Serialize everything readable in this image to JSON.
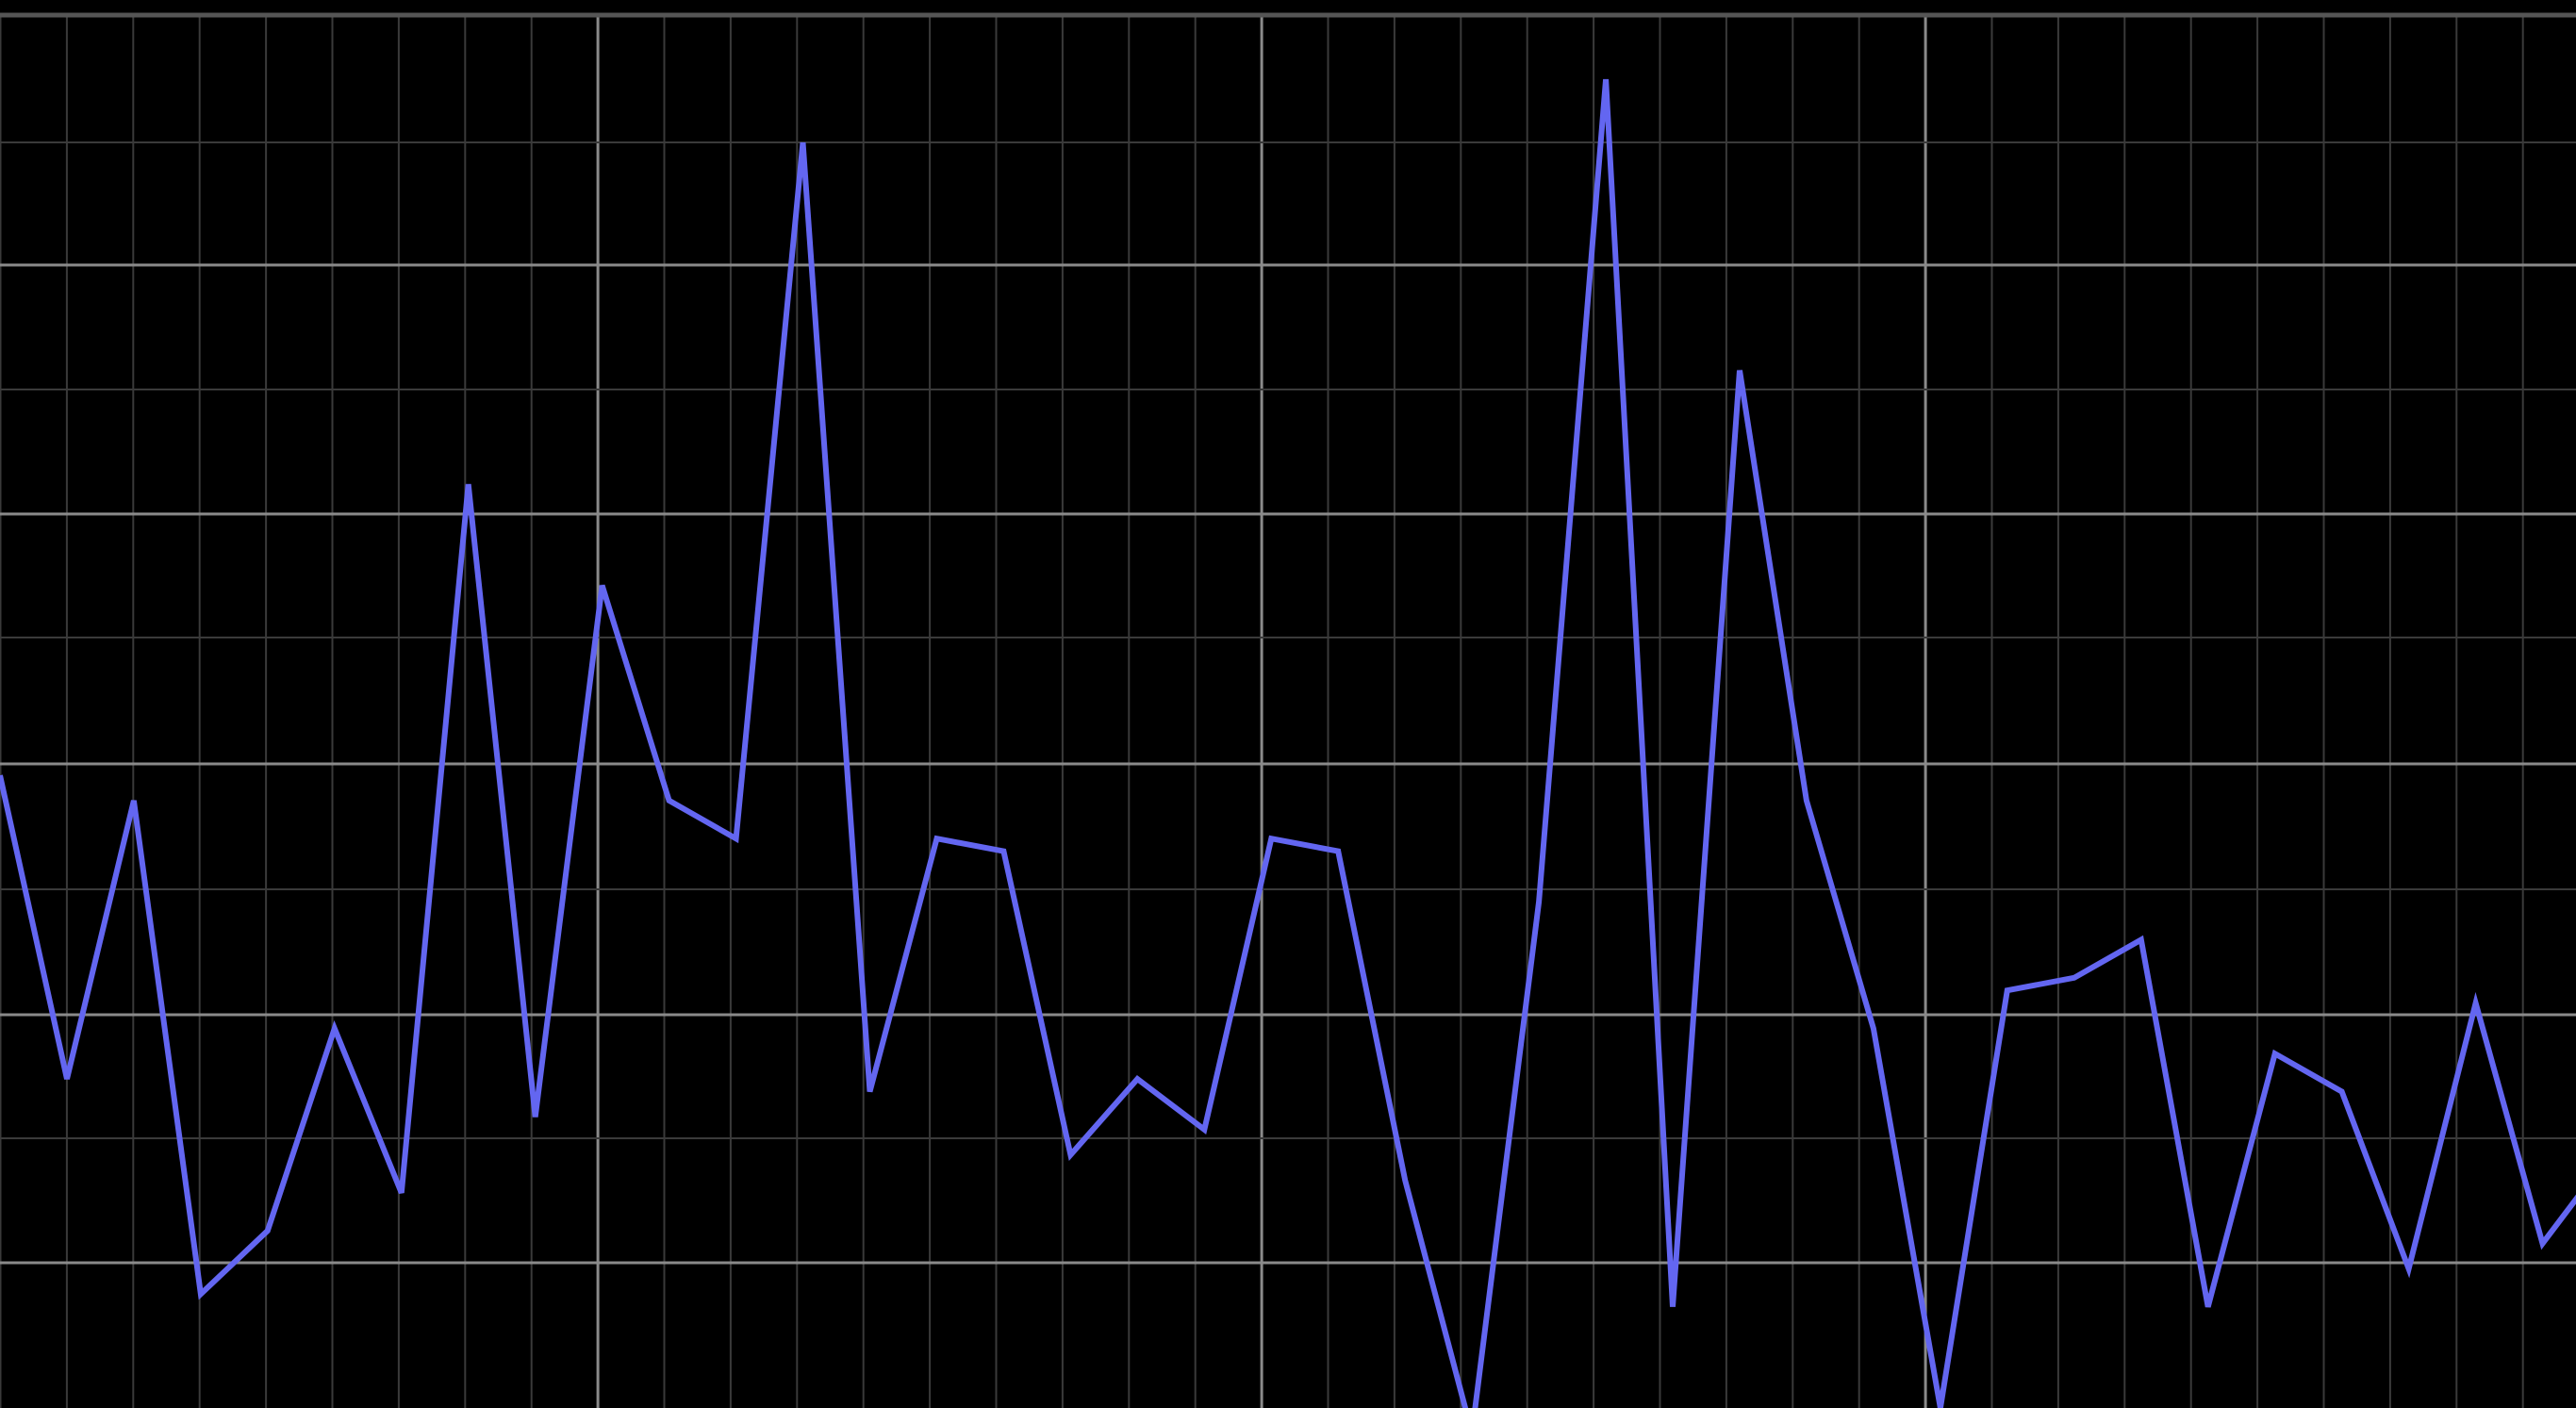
{
  "colors": {
    "background": "#000000",
    "line": "#6366f1",
    "grid_minor": "#3a3a3a",
    "grid_major": "#8a8a8a",
    "top_border": "#555555"
  },
  "chart_data": {
    "type": "line",
    "title": "",
    "xlabel": "",
    "ylabel": "",
    "grid": true,
    "legend": "none",
    "xlim": [
      -0.5,
      38
    ],
    "ylim": [
      0,
      11
    ],
    "x": [
      -0.5,
      0.5,
      1.5,
      2.5,
      3.5,
      4.5,
      5.5,
      6.5,
      7.5,
      8.5,
      9.5,
      10.5,
      11.5,
      12.5,
      13.5,
      14.5,
      15.5,
      16.5,
      17.5,
      18.5,
      19.5,
      20.5,
      21.5,
      22.5,
      23.5,
      24.5,
      25.5,
      26.5,
      27.5,
      28.5,
      29.5,
      30.5,
      31.5,
      32.5,
      33.5,
      34.5,
      35.5,
      36.5,
      37.5,
      38.5
    ],
    "series": [
      {
        "values": [
          5.0,
          2.6,
          4.8,
          0.9,
          1.4,
          3.0,
          1.7,
          7.3,
          2.3,
          6.5,
          4.8,
          4.5,
          10.0,
          2.5,
          4.5,
          4.4,
          2.0,
          2.6,
          2.2,
          4.5,
          4.4,
          1.8,
          -0.2,
          4.0,
          10.5,
          0.8,
          8.2,
          4.8,
          3.0,
          0.0,
          3.3,
          3.4,
          3.7,
          0.8,
          2.8,
          2.5,
          1.1,
          3.2,
          1.3,
          2.0
        ]
      }
    ]
  }
}
